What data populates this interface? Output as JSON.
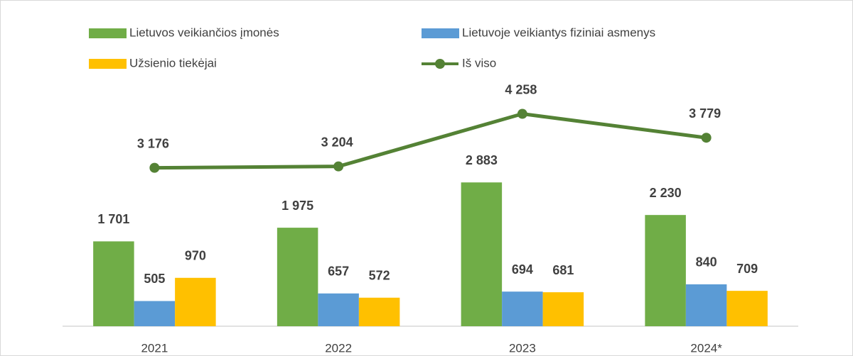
{
  "chart_data": {
    "type": "bar",
    "categories": [
      "2021",
      "2022",
      "2023",
      "2024*"
    ],
    "ylim": [
      0,
      6000
    ],
    "legend": "top",
    "series": [
      {
        "name": "Lietuvos veikiančios įmonės",
        "color": "#70ad47",
        "values": [
          1701,
          1975,
          2883,
          2230
        ],
        "value_labels": [
          "1 701",
          "1 975",
          "2 883",
          "2 230"
        ]
      },
      {
        "name": "Lietuvoje veikiantys fiziniai asmenys",
        "color": "#5b9bd5",
        "values": [
          505,
          657,
          694,
          840
        ],
        "value_labels": [
          "505",
          "657",
          "694",
          "840"
        ]
      },
      {
        "name": "Užsienio tiekėjai",
        "color": "#ffc000",
        "values": [
          970,
          572,
          681,
          709
        ],
        "value_labels": [
          "970",
          "572",
          "681",
          "709"
        ]
      },
      {
        "name": "Iš viso",
        "type": "line",
        "color": "#548235",
        "values": [
          3176,
          3204,
          4258,
          3779
        ],
        "value_labels": [
          "3 176",
          "3 204",
          "4 258",
          "3 779"
        ]
      }
    ]
  }
}
